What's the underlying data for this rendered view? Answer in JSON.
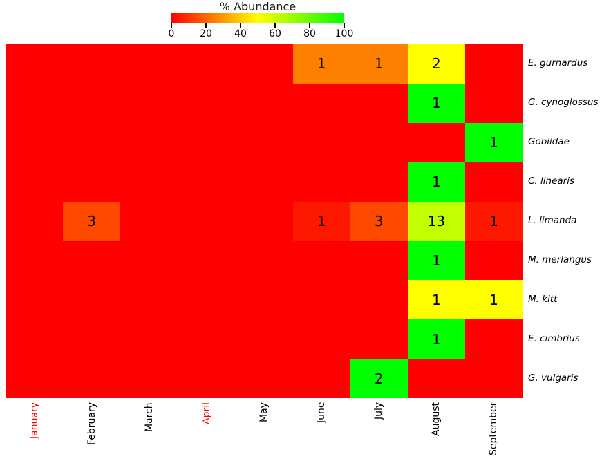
{
  "legend": {
    "title": "% Abundance",
    "tick_labels": [
      "0",
      "20",
      "40",
      "60",
      "80",
      "100"
    ],
    "gradient_colors": [
      "#ff0000",
      "#ffff00",
      "#00ff00"
    ]
  },
  "x_axis": {
    "labels": [
      "January",
      "February",
      "March",
      "April",
      "May",
      "June",
      "July",
      "August",
      "September"
    ],
    "label_colors": [
      "#ff0000",
      "#000000",
      "#000000",
      "#ff0000",
      "#000000",
      "#000000",
      "#000000",
      "#000000",
      "#000000"
    ]
  },
  "y_axis": {
    "labels": [
      "E. gurnardus",
      "G. cynoglossus",
      "Gobiidae",
      "C. linearis",
      "L. limanda",
      "M. merlangus",
      "M. kitt",
      "E. cimbrius",
      "G. vulgaris"
    ]
  },
  "chart_data": {
    "type": "heatmap",
    "title": "% Abundance",
    "x_categories": [
      "January",
      "February",
      "March",
      "April",
      "May",
      "June",
      "July",
      "August",
      "September"
    ],
    "y_categories": [
      "E. gurnardus",
      "G. cynoglossus",
      "Gobiidae",
      "C. linearis",
      "L. limanda",
      "M. merlangus",
      "M. kitt",
      "E. cimbrius",
      "G. vulgaris"
    ],
    "counts": [
      [
        0,
        0,
        0,
        0,
        0,
        1,
        1,
        2,
        0
      ],
      [
        0,
        0,
        0,
        0,
        0,
        0,
        0,
        1,
        0
      ],
      [
        0,
        0,
        0,
        0,
        0,
        0,
        0,
        0,
        1
      ],
      [
        0,
        0,
        0,
        0,
        0,
        0,
        0,
        1,
        0
      ],
      [
        0,
        3,
        0,
        0,
        0,
        1,
        3,
        13,
        1
      ],
      [
        0,
        0,
        0,
        0,
        0,
        0,
        0,
        1,
        0
      ],
      [
        0,
        0,
        0,
        0,
        0,
        0,
        0,
        1,
        1
      ],
      [
        0,
        0,
        0,
        0,
        0,
        0,
        0,
        1,
        0
      ],
      [
        0,
        0,
        0,
        0,
        0,
        0,
        2,
        0,
        0
      ]
    ],
    "cell_labels_shown": "non-zero counts only",
    "color_scale": {
      "min": 0,
      "max": 100,
      "unit": "% abundance (count as percent of species row total)",
      "stops": [
        "#ff0000",
        "#ffff00",
        "#00ff00"
      ],
      "zero_color": "#ff0000"
    },
    "highlighted_x_labels": [
      "January",
      "April"
    ],
    "highlight_color": "#ff0000",
    "legend_position": "top-center",
    "grid": false
  }
}
